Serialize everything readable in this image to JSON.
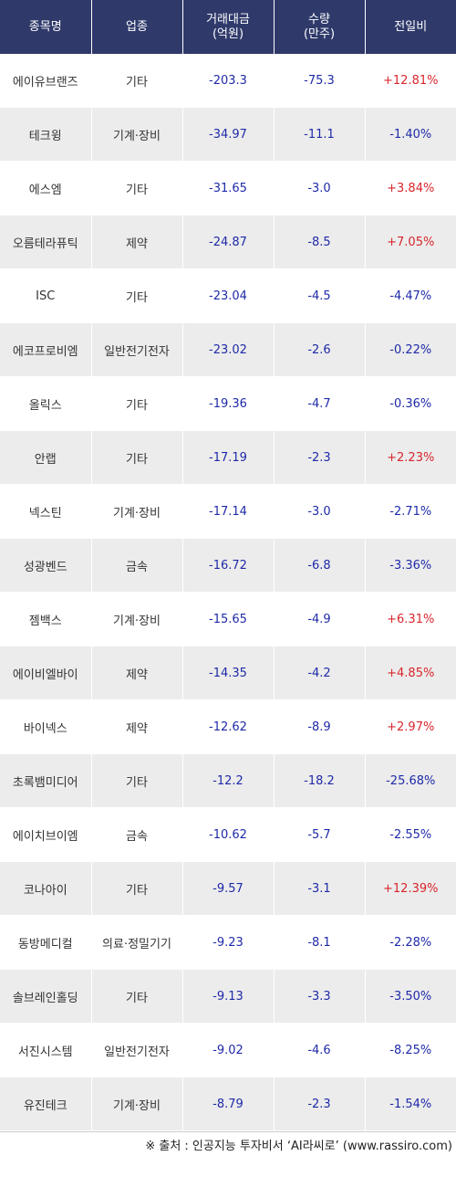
{
  "header": {
    "name": "종목명",
    "sector": "업종",
    "amount": "거래대금\n(억원)",
    "amount_l1": "거래대금",
    "amount_l2": "(억원)",
    "volume_l1": "수량",
    "volume_l2": "(만주)",
    "change": "전일비"
  },
  "rows": [
    {
      "name": "에이유브랜즈",
      "sector": "기타",
      "amount": "-203.3",
      "volume": "-75.3",
      "change": "+12.81%"
    },
    {
      "name": "테크윙",
      "sector": "기계·장비",
      "amount": "-34.97",
      "volume": "-11.1",
      "change": "-1.40%"
    },
    {
      "name": "에스엠",
      "sector": "기타",
      "amount": "-31.65",
      "volume": "-3.0",
      "change": "+3.84%"
    },
    {
      "name": "오름테라퓨틱",
      "sector": "제약",
      "amount": "-24.87",
      "volume": "-8.5",
      "change": "+7.05%"
    },
    {
      "name": "ISC",
      "sector": "기타",
      "amount": "-23.04",
      "volume": "-4.5",
      "change": "-4.47%"
    },
    {
      "name": "에코프로비엠",
      "sector": "일반전기전자",
      "amount": "-23.02",
      "volume": "-2.6",
      "change": "-0.22%"
    },
    {
      "name": "올릭스",
      "sector": "기타",
      "amount": "-19.36",
      "volume": "-4.7",
      "change": "-0.36%"
    },
    {
      "name": "안랩",
      "sector": "기타",
      "amount": "-17.19",
      "volume": "-2.3",
      "change": "+2.23%"
    },
    {
      "name": "넥스틴",
      "sector": "기계·장비",
      "amount": "-17.14",
      "volume": "-3.0",
      "change": "-2.71%"
    },
    {
      "name": "성광벤드",
      "sector": "금속",
      "amount": "-16.72",
      "volume": "-6.8",
      "change": "-3.36%"
    },
    {
      "name": "젬백스",
      "sector": "기계·장비",
      "amount": "-15.65",
      "volume": "-4.9",
      "change": "+6.31%"
    },
    {
      "name": "에이비엘바이",
      "sector": "제약",
      "amount": "-14.35",
      "volume": "-4.2",
      "change": "+4.85%"
    },
    {
      "name": "바이넥스",
      "sector": "제약",
      "amount": "-12.62",
      "volume": "-8.9",
      "change": "+2.97%"
    },
    {
      "name": "초록뱀미디어",
      "sector": "기타",
      "amount": "-12.2",
      "volume": "-18.2",
      "change": "-25.68%"
    },
    {
      "name": "에이치브이엠",
      "sector": "금속",
      "amount": "-10.62",
      "volume": "-5.7",
      "change": "-2.55%"
    },
    {
      "name": "코나아이",
      "sector": "기타",
      "amount": "-9.57",
      "volume": "-3.1",
      "change": "+12.39%"
    },
    {
      "name": "동방메디컬",
      "sector": "의료·정밀기기",
      "amount": "-9.23",
      "volume": "-8.1",
      "change": "-2.28%"
    },
    {
      "name": "솔브레인홀딩",
      "sector": "기타",
      "amount": "-9.13",
      "volume": "-3.3",
      "change": "-3.50%"
    },
    {
      "name": "서진시스템",
      "sector": "일반전기전자",
      "amount": "-9.02",
      "volume": "-4.6",
      "change": "-8.25%"
    },
    {
      "name": "유진테크",
      "sector": "기계·장비",
      "amount": "-8.79",
      "volume": "-2.3",
      "change": "-1.54%"
    }
  ],
  "source": "※ 출처 : 인공지능 투자비서 ‘AI라씨로’ (www.rassiro.com)",
  "colors": {
    "header_bg": "#2f3a6b",
    "positive": "#d8262c",
    "negative": "#1f2aa8",
    "stripe": "#ececec"
  }
}
